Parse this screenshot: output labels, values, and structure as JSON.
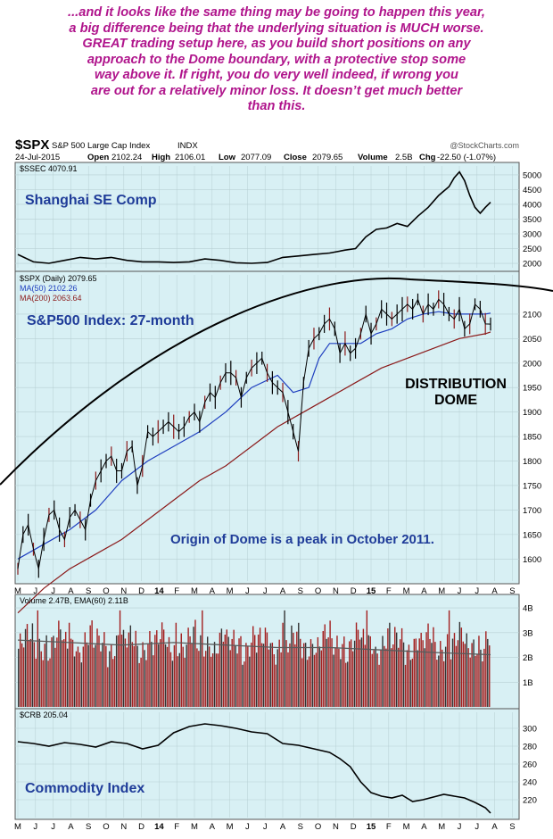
{
  "headline": {
    "lines": [
      "...and it looks like the same thing may be going to happen this year,",
      "a big difference being that the underlying situation is MUCH worse.",
      "GREAT trading setup here, as you build short positions on any",
      "approach to the Dome boundary, with a protective stop some",
      "way above it. If right, you do very well indeed, if wrong you",
      "are out for a relatively minor loss. It doesn’t get much better",
      "than this."
    ],
    "color": "#b0158c"
  },
  "chart_data": {
    "type": "line",
    "header": {
      "symbol": "$SPX",
      "name": "S&P 500 Large Cap Index",
      "exchange": "INDX",
      "source": "@StockCharts.com",
      "date": "24-Jul-2015",
      "open_label": "Open",
      "open": "2102.24",
      "high_label": "High",
      "high": "2106.01",
      "low_label": "Low",
      "low": "2077.09",
      "close_label": "Close",
      "close": "2079.65",
      "volume_label": "Volume",
      "volume": "2.5B",
      "chg_label": "Chg",
      "chg": "-22.50 (-1.07%)"
    },
    "x_axis": {
      "labels": [
        "M",
        "J",
        "J",
        "A",
        "S",
        "O",
        "N",
        "D",
        "14",
        "F",
        "M",
        "A",
        "M",
        "J",
        "J",
        "A",
        "S",
        "O",
        "N",
        "D",
        "15",
        "F",
        "M",
        "A",
        "M",
        "J",
        "J",
        "A",
        "S"
      ],
      "bold": [
        "14",
        "15"
      ],
      "range": [
        "2013-05",
        "2015-09"
      ]
    },
    "panels": [
      {
        "id": "ssec",
        "legend": "$SSEC 4070.91",
        "label": "Shanghai SE Comp",
        "ylim": [
          1850,
          5300
        ],
        "yticks": [
          "5000",
          "4500",
          "4000",
          "3500",
          "3000",
          "2500",
          "2000"
        ],
        "series": [
          {
            "name": "$SSEC",
            "color": "#000000",
            "x": [
              0,
              3,
              6,
              9,
              12,
              15,
              18,
              21,
              24,
              27,
              30,
              33,
              36,
              39,
              42,
              45,
              48,
              51,
              54,
              57,
              60,
              63,
              65,
              67,
              69,
              71,
              73,
              75,
              77,
              79,
              81,
              83,
              84,
              85,
              86,
              87,
              88,
              89,
              90,
              91
            ],
            "y": [
              2300,
              2050,
              2000,
              2100,
              2200,
              2150,
              2200,
              2100,
              2050,
              2050,
              2030,
              2050,
              2150,
              2100,
              2020,
              2000,
              2030,
              2200,
              2250,
              2300,
              2350,
              2450,
              2500,
              2900,
              3150,
              3200,
              3350,
              3250,
              3600,
              3900,
              4300,
              4600,
              4900,
              5100,
              4800,
              4300,
              3900,
              3700,
              3900,
              4070
            ]
          }
        ]
      },
      {
        "id": "spx",
        "legend": [
          "$SPX (Daily) 2079.65",
          "MA(50) 2102.26",
          "MA(200) 2063.64"
        ],
        "label": "S&P500 Index: 27-month",
        "ylim": [
          1555,
          2180
        ],
        "yticks": [
          "2100",
          "2050",
          "2000",
          "1950",
          "1900",
          "1850",
          "1800",
          "1750",
          "1700",
          "1650",
          "1600"
        ],
        "series": [
          {
            "name": "$SPX",
            "color": "#000000",
            "x": [
              0,
              1,
              2,
              3,
              4,
              5,
              6,
              7,
              8,
              9,
              10,
              11,
              12,
              13,
              14,
              15,
              16,
              17,
              18,
              19,
              20,
              21,
              22,
              23,
              24,
              25,
              26,
              27,
              28,
              29,
              30,
              31,
              32,
              33,
              34,
              35,
              36,
              37,
              38,
              39,
              40,
              41,
              42,
              43,
              44,
              45,
              46,
              47,
              48,
              49,
              50,
              51,
              52,
              53,
              54,
              55,
              56,
              57,
              58,
              59,
              60,
              61,
              62,
              63,
              64,
              65,
              66,
              67,
              68,
              69,
              70,
              71,
              72,
              73,
              74,
              75,
              76,
              77,
              78,
              79,
              80,
              81,
              82,
              83,
              84,
              85,
              86,
              87,
              88,
              89,
              90,
              91
            ],
            "y": [
              1580,
              1650,
              1670,
              1620,
              1580,
              1640,
              1690,
              1700,
              1660,
              1640,
              1685,
              1700,
              1680,
              1660,
              1720,
              1760,
              1780,
              1800,
              1810,
              1780,
              1780,
              1820,
              1830,
              1750,
              1790,
              1860,
              1850,
              1860,
              1870,
              1880,
              1870,
              1860,
              1870,
              1890,
              1900,
              1880,
              1920,
              1940,
              1930,
              1960,
              1980,
              1980,
              1970,
              1930,
              1970,
              1990,
              2000,
              2010,
              1980,
              1960,
              1950,
              1940,
              1900,
              1860,
              1820,
              1960,
              2030,
              2050,
              2060,
              2080,
              2090,
              2070,
              2020,
              2040,
              2020,
              2030,
              2060,
              2100,
              2060,
              2080,
              2110,
              2100,
              2090,
              2100,
              2110,
              2120,
              2110,
              2130,
              2100,
              2120,
              2110,
              2130,
              2120,
              2100,
              2090,
              2110,
              2070,
              2080,
              2120,
              2110,
              2080,
              2079.65
            ],
            "candles": true
          },
          {
            "name": "MA(50)",
            "color": "#1f3fbf",
            "x": [
              0,
              5,
              10,
              15,
              20,
              25,
              30,
              35,
              40,
              45,
              50,
              53,
              56,
              58,
              60,
              63,
              66,
              69,
              72,
              75,
              78,
              81,
              84,
              87,
              90,
              91
            ],
            "y": [
              1600,
              1630,
              1660,
              1700,
              1760,
              1800,
              1830,
              1860,
              1900,
              1950,
              1975,
              1940,
              1950,
              2010,
              2040,
              2040,
              2040,
              2060,
              2070,
              2090,
              2100,
              2105,
              2100,
              2100,
              2100,
              2102
            ]
          },
          {
            "name": "MA(200)",
            "color": "#8b1a1a",
            "x": [
              0,
              5,
              10,
              15,
              20,
              25,
              30,
              35,
              40,
              45,
              50,
              55,
              60,
              65,
              70,
              75,
              80,
              85,
              90,
              91
            ],
            "y": [
              1490,
              1540,
              1580,
              1610,
              1640,
              1680,
              1720,
              1760,
              1790,
              1830,
              1870,
              1900,
              1930,
              1960,
              1990,
              2010,
              2030,
              2050,
              2060,
              2063.64
            ]
          }
        ],
        "dome": {
          "name": "Distribution Dome",
          "color": "#000000"
        },
        "annotations": {
          "dome_label_1": "DISTRIBUTION",
          "dome_label_2": "DOME",
          "origin": "Origin of Dome is a peak in October 2011."
        }
      },
      {
        "id": "volume",
        "legend": "Volume 2.47B, EMA(60) 2.11B",
        "ylim": [
          0,
          4.4
        ],
        "yticks": [
          "4B",
          "3B",
          "2B",
          "1B"
        ],
        "series": [
          {
            "name": "Volume",
            "color": "#a31f1f",
            "type": "bar",
            "avg": 2.6
          },
          {
            "name": "EMA(60)",
            "color": "#5a5a5a",
            "x": [
              0,
              10,
              20,
              30,
              40,
              50,
              60,
              70,
              80,
              91
            ],
            "y": [
              2.7,
              2.6,
              2.5,
              2.6,
              2.5,
              2.4,
              2.4,
              2.3,
              2.2,
              2.11
            ]
          }
        ]
      },
      {
        "id": "crb",
        "legend": "$CRB 205.04",
        "label": "Commodity Index",
        "ylim": [
          200,
          318
        ],
        "yticks": [
          "300",
          "280",
          "260",
          "240",
          "220"
        ],
        "series": [
          {
            "name": "$CRB",
            "color": "#000000",
            "x": [
              0,
              3,
              6,
              9,
              12,
              15,
              18,
              21,
              24,
              27,
              30,
              33,
              36,
              39,
              42,
              45,
              48,
              51,
              54,
              57,
              60,
              62,
              64,
              66,
              68,
              70,
              72,
              74,
              76,
              78,
              80,
              82,
              84,
              86,
              88,
              90,
              91
            ],
            "y": [
              285,
              283,
              280,
              284,
              282,
              279,
              285,
              283,
              277,
              281,
              295,
              302,
              305,
              303,
              300,
              296,
              294,
              283,
              281,
              277,
              273,
              266,
              257,
              240,
              228,
              224,
              222,
              225,
              218,
              220,
              223,
              226,
              224,
              222,
              217,
              211,
              205
            ]
          }
        ]
      }
    ],
    "colors": {
      "panel_bg": "#d8f0f4",
      "grid": "#b7cfd3",
      "label": "#1f3c99",
      "title": "#000000"
    }
  }
}
